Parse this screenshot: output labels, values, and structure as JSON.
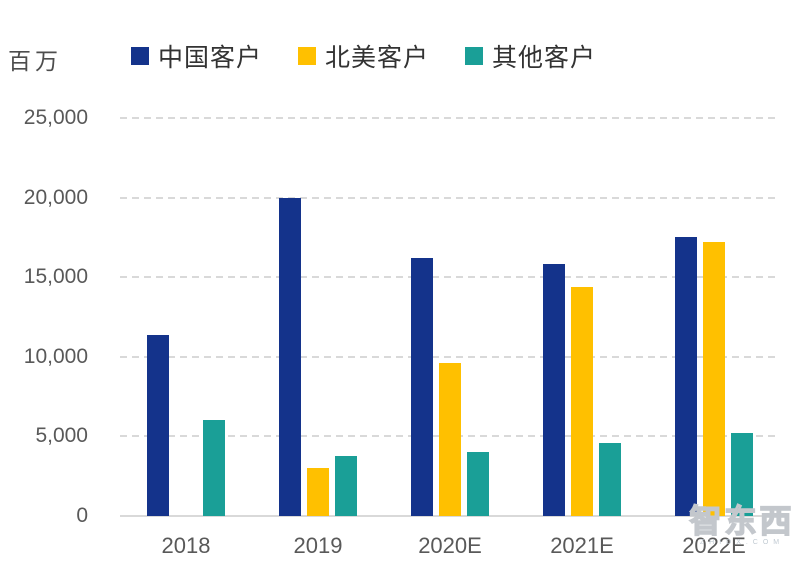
{
  "chart_data": {
    "type": "bar",
    "title": "",
    "unit_label": "百万",
    "categories": [
      "2018",
      "2019",
      "2020E",
      "2021E",
      "2022E"
    ],
    "series": [
      {
        "name": "中国客户",
        "color": "#14338B",
        "values": [
          11400,
          20000,
          16200,
          15800,
          17500
        ]
      },
      {
        "name": "北美客户",
        "color": "#FFC000",
        "values": [
          0,
          3000,
          9600,
          14400,
          17200
        ]
      },
      {
        "name": "其他客户",
        "color": "#1A9F97",
        "values": [
          6000,
          3800,
          4000,
          4600,
          5200
        ]
      }
    ],
    "ylim": [
      0,
      25000
    ],
    "ytick_interval": 5000,
    "ytick_labels": [
      "0",
      "5,000",
      "10,000",
      "15,000",
      "20,000",
      "25,000"
    ],
    "grid": "dashed horizontal gridlines",
    "legend_position": "top",
    "colors": {
      "gridline": "#d9d9d9",
      "axis_text": "#595959",
      "legend_text": "#333333"
    }
  },
  "watermark": {
    "text": "智东西",
    "subtext": "ZHIDX.COM"
  }
}
